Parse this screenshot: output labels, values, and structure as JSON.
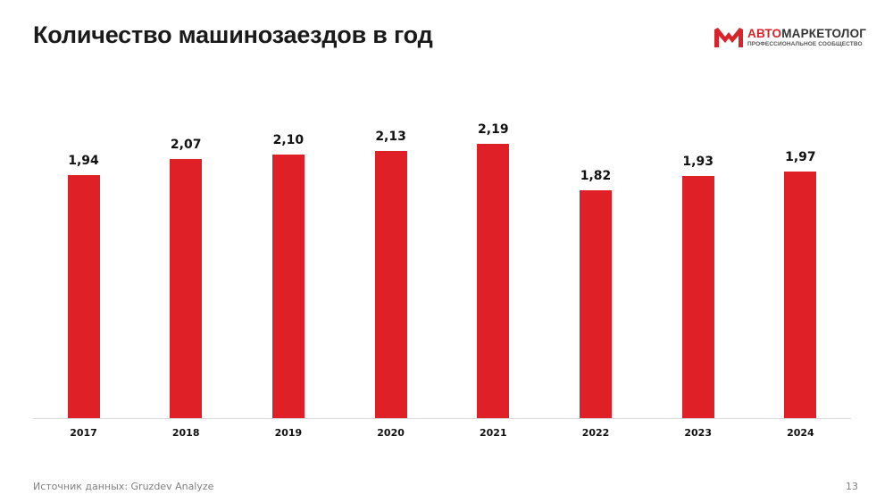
{
  "slide": {
    "title": "Количество машинозаездов в год",
    "source": "Источник данных: Gruzdev Analyze",
    "page_number": "13"
  },
  "logo": {
    "name_accent": "АВТО",
    "name_rest": "МАРКЕТОЛОГ",
    "subtitle": "ПРОФЕССИОНАЛЬНОЕ СООБЩЕСТВО",
    "icon": "am-logo-icon",
    "accent_color": "#d9232a"
  },
  "chart_data": {
    "type": "bar",
    "title": "Количество машинозаездов в год",
    "xlabel": "",
    "ylabel": "",
    "categories": [
      "2017",
      "2018",
      "2019",
      "2020",
      "2021",
      "2022",
      "2023",
      "2024"
    ],
    "values": [
      1.94,
      2.07,
      2.1,
      2.13,
      2.19,
      1.82,
      1.93,
      1.97
    ],
    "value_labels": [
      "1,94",
      "2,07",
      "2,10",
      "2,13",
      "2,19",
      "1,82",
      "1,93",
      "1,97"
    ],
    "bar_color": "#df2127",
    "grid": false,
    "legend": null,
    "ylim": [
      0,
      2.5
    ]
  }
}
